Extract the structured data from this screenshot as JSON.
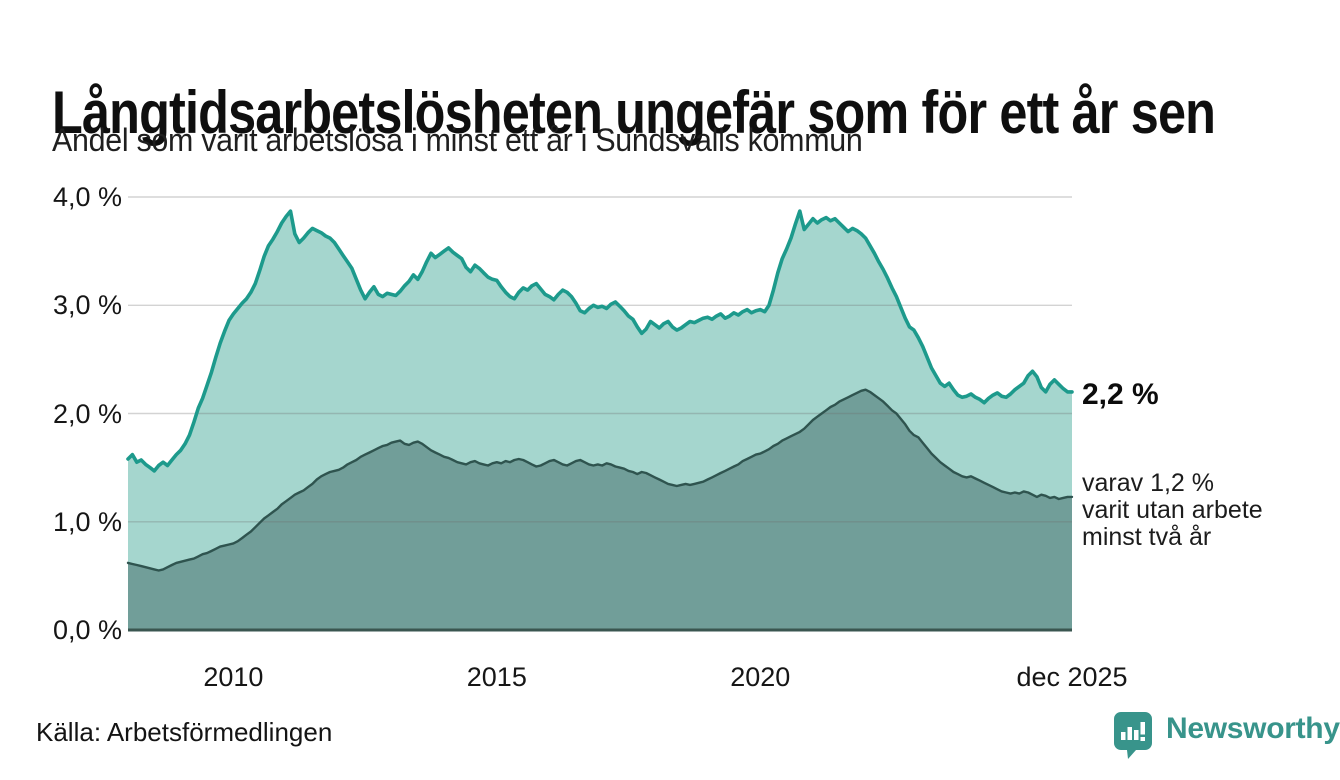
{
  "source": "Källa: Arbetsförmedlingen",
  "branding": {
    "name": "Newsworthy",
    "icon": "newsworthy-speech-bubble-bar-chart-icon",
    "color": "#38948b"
  },
  "chart_data": {
    "type": "area",
    "title": "Långtidsarbetslösheten ungefär som för ett år sen",
    "subtitle": "Andel som varit arbetslösa i minst ett år i Sundsvalls kommun",
    "frequency": "monthly",
    "x_start": "2008-01",
    "x_end": "2025-12",
    "ylim": [
      0,
      4
    ],
    "grid": "horizontal",
    "legend": "none",
    "y_ticks": [
      {
        "label": "0,0 %",
        "value": 0
      },
      {
        "label": "1,0 %",
        "value": 1
      },
      {
        "label": "2,0 %",
        "value": 2
      },
      {
        "label": "3,0 %",
        "value": 3
      },
      {
        "label": "4,0 %",
        "value": 4
      }
    ],
    "x_ticks": [
      {
        "label": "2010",
        "year": 2010.0
      },
      {
        "label": "2015",
        "year": 2015.0
      },
      {
        "label": "2020",
        "year": 2020.0
      },
      {
        "label": "dec 2025",
        "year": 2025.9167
      }
    ],
    "annotations": {
      "latest_value": "2,2 %",
      "secondary_lines": [
        "varav 1,2 %",
        "varit utan arbete",
        "minst två år"
      ]
    },
    "series": [
      {
        "name": "Andel arbetslösa minst ett år",
        "line_color": "#1d9a8c",
        "fill_color": "#a5d6ce",
        "latest": 2.2,
        "values": [
          1.58,
          1.62,
          1.55,
          1.57,
          1.53,
          1.5,
          1.47,
          1.52,
          1.55,
          1.52,
          1.57,
          1.62,
          1.66,
          1.72,
          1.8,
          1.92,
          2.05,
          2.14,
          2.26,
          2.38,
          2.52,
          2.65,
          2.76,
          2.86,
          2.92,
          2.97,
          3.02,
          3.06,
          3.12,
          3.2,
          3.32,
          3.45,
          3.55,
          3.61,
          3.68,
          3.76,
          3.82,
          3.87,
          3.66,
          3.58,
          3.62,
          3.67,
          3.71,
          3.69,
          3.67,
          3.64,
          3.62,
          3.58,
          3.52,
          3.46,
          3.4,
          3.34,
          3.24,
          3.14,
          3.06,
          3.12,
          3.17,
          3.1,
          3.08,
          3.11,
          3.1,
          3.09,
          3.13,
          3.18,
          3.22,
          3.28,
          3.24,
          3.31,
          3.4,
          3.48,
          3.44,
          3.47,
          3.5,
          3.53,
          3.49,
          3.46,
          3.43,
          3.35,
          3.31,
          3.37,
          3.34,
          3.3,
          3.26,
          3.24,
          3.23,
          3.17,
          3.12,
          3.08,
          3.06,
          3.12,
          3.16,
          3.14,
          3.18,
          3.2,
          3.15,
          3.1,
          3.08,
          3.05,
          3.1,
          3.14,
          3.12,
          3.08,
          3.02,
          2.95,
          2.93,
          2.97,
          3.0,
          2.98,
          2.99,
          2.97,
          3.01,
          3.03,
          2.99,
          2.95,
          2.9,
          2.87,
          2.8,
          2.74,
          2.78,
          2.85,
          2.82,
          2.79,
          2.83,
          2.85,
          2.8,
          2.77,
          2.79,
          2.82,
          2.85,
          2.84,
          2.86,
          2.88,
          2.89,
          2.87,
          2.9,
          2.92,
          2.88,
          2.9,
          2.93,
          2.91,
          2.94,
          2.96,
          2.93,
          2.95,
          2.96,
          2.94,
          3.0,
          3.14,
          3.3,
          3.43,
          3.52,
          3.62,
          3.75,
          3.87,
          3.7,
          3.75,
          3.8,
          3.76,
          3.79,
          3.81,
          3.78,
          3.8,
          3.76,
          3.72,
          3.68,
          3.71,
          3.69,
          3.66,
          3.62,
          3.55,
          3.48,
          3.4,
          3.33,
          3.25,
          3.16,
          3.08,
          2.98,
          2.88,
          2.8,
          2.77,
          2.7,
          2.62,
          2.52,
          2.42,
          2.35,
          2.28,
          2.25,
          2.28,
          2.22,
          2.17,
          2.15,
          2.16,
          2.18,
          2.15,
          2.13,
          2.1,
          2.14,
          2.17,
          2.19,
          2.16,
          2.15,
          2.18,
          2.22,
          2.25,
          2.28,
          2.35,
          2.39,
          2.34,
          2.24,
          2.2,
          2.27,
          2.31,
          2.27,
          2.23,
          2.2,
          2.2
        ]
      },
      {
        "name": "varav arbetslösa minst två år",
        "line_color": "#2f544f",
        "fill_color": "#719e99",
        "latest": 1.2,
        "values": [
          0.62,
          0.61,
          0.6,
          0.59,
          0.58,
          0.57,
          0.56,
          0.55,
          0.56,
          0.58,
          0.6,
          0.62,
          0.63,
          0.64,
          0.65,
          0.66,
          0.68,
          0.7,
          0.71,
          0.73,
          0.75,
          0.77,
          0.78,
          0.79,
          0.8,
          0.82,
          0.85,
          0.88,
          0.91,
          0.95,
          0.99,
          1.03,
          1.06,
          1.09,
          1.12,
          1.16,
          1.19,
          1.22,
          1.25,
          1.27,
          1.29,
          1.32,
          1.35,
          1.39,
          1.42,
          1.44,
          1.46,
          1.47,
          1.48,
          1.5,
          1.53,
          1.55,
          1.57,
          1.6,
          1.62,
          1.64,
          1.66,
          1.68,
          1.7,
          1.71,
          1.73,
          1.74,
          1.75,
          1.72,
          1.71,
          1.73,
          1.74,
          1.72,
          1.69,
          1.66,
          1.64,
          1.62,
          1.6,
          1.59,
          1.57,
          1.55,
          1.54,
          1.53,
          1.55,
          1.56,
          1.54,
          1.53,
          1.52,
          1.54,
          1.55,
          1.54,
          1.56,
          1.55,
          1.57,
          1.58,
          1.57,
          1.55,
          1.53,
          1.51,
          1.52,
          1.54,
          1.56,
          1.57,
          1.55,
          1.53,
          1.52,
          1.54,
          1.56,
          1.57,
          1.55,
          1.53,
          1.52,
          1.53,
          1.52,
          1.54,
          1.53,
          1.51,
          1.5,
          1.49,
          1.47,
          1.46,
          1.44,
          1.46,
          1.45,
          1.43,
          1.41,
          1.39,
          1.37,
          1.35,
          1.34,
          1.33,
          1.34,
          1.35,
          1.34,
          1.35,
          1.36,
          1.37,
          1.39,
          1.41,
          1.43,
          1.45,
          1.47,
          1.49,
          1.51,
          1.53,
          1.56,
          1.58,
          1.6,
          1.62,
          1.63,
          1.65,
          1.67,
          1.7,
          1.72,
          1.75,
          1.77,
          1.79,
          1.81,
          1.83,
          1.86,
          1.9,
          1.94,
          1.97,
          2.0,
          2.03,
          2.06,
          2.08,
          2.11,
          2.13,
          2.15,
          2.17,
          2.19,
          2.21,
          2.22,
          2.2,
          2.17,
          2.14,
          2.11,
          2.07,
          2.03,
          2.0,
          1.95,
          1.9,
          1.84,
          1.8,
          1.78,
          1.73,
          1.68,
          1.63,
          1.59,
          1.55,
          1.52,
          1.49,
          1.46,
          1.44,
          1.42,
          1.41,
          1.42,
          1.4,
          1.38,
          1.36,
          1.34,
          1.32,
          1.3,
          1.28,
          1.27,
          1.26,
          1.27,
          1.26,
          1.28,
          1.27,
          1.25,
          1.23,
          1.25,
          1.24,
          1.22,
          1.23,
          1.21,
          1.22,
          1.23,
          1.23
        ]
      }
    ]
  }
}
